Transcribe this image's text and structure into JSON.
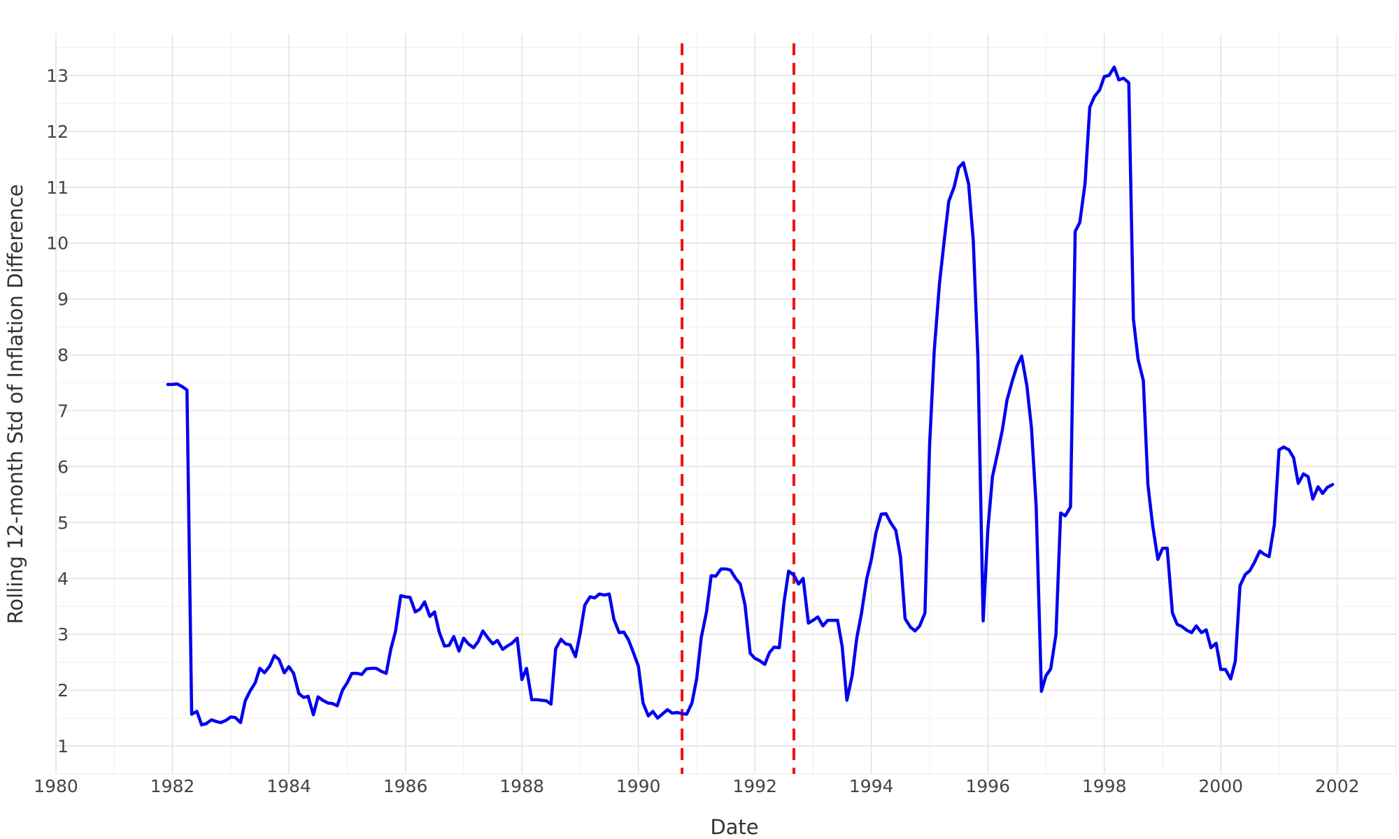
{
  "chart_data": {
    "type": "line",
    "xlabel": "Date",
    "ylabel": "Rolling 12-month Std of Inflation Difference",
    "xlim": [
      1980,
      2003
    ],
    "ylim": [
      0.5,
      13.75
    ],
    "x_ticks": [
      "1980",
      "1982",
      "1984",
      "1986",
      "1988",
      "1990",
      "1992",
      "1994",
      "1996",
      "1998",
      "2000",
      "2002"
    ],
    "y_ticks": [
      "1",
      "2",
      "3",
      "4",
      "5",
      "6",
      "7",
      "8",
      "9",
      "10",
      "11",
      "12",
      "13"
    ],
    "grid": true,
    "line_color": "#0000ee",
    "vline_color": "#ee1111",
    "vlines": [
      1990.75,
      1992.67
    ],
    "series": [
      {
        "x": [
          1981.92,
          1982.0,
          1982.08,
          1982.17,
          1982.25,
          1982.33,
          1982.42,
          1982.5,
          1982.58,
          1982.67,
          1982.75,
          1982.83,
          1982.92,
          1983.0,
          1983.08,
          1983.17,
          1983.25,
          1983.33,
          1983.42,
          1983.5,
          1983.58,
          1983.67,
          1983.75,
          1983.83,
          1983.92,
          1984.0,
          1984.08,
          1984.17,
          1984.25,
          1984.33,
          1984.42,
          1984.5,
          1984.58,
          1984.67,
          1984.75,
          1984.83,
          1984.92,
          1985.0,
          1985.08,
          1985.17,
          1985.25,
          1985.33,
          1985.42,
          1985.5,
          1985.58,
          1985.67,
          1985.75,
          1985.83,
          1985.92,
          1986.0,
          1986.08,
          1986.17,
          1986.25,
          1986.33,
          1986.42,
          1986.5,
          1986.58,
          1986.67,
          1986.75,
          1986.83,
          1986.92,
          1987.0,
          1987.08,
          1987.17,
          1987.25,
          1987.33,
          1987.42,
          1987.5,
          1987.58,
          1987.67,
          1987.75,
          1987.83,
          1987.92,
          1988.0,
          1988.08,
          1988.17,
          1988.25,
          1988.33,
          1988.42,
          1988.5,
          1988.58,
          1988.67,
          1988.75,
          1988.83,
          1988.92,
          1989.0,
          1989.08,
          1989.17,
          1989.25,
          1989.33,
          1989.42,
          1989.5,
          1989.58,
          1989.67,
          1989.75,
          1989.83,
          1989.92,
          1990.0,
          1990.08,
          1990.17,
          1990.25,
          1990.33,
          1990.42,
          1990.5,
          1990.58,
          1990.67,
          1990.75,
          1990.83,
          1990.92,
          1991.0,
          1991.08,
          1991.17,
          1991.25,
          1991.33,
          1991.42,
          1991.5,
          1991.58,
          1991.67,
          1991.75,
          1991.83,
          1991.92,
          1992.0,
          1992.08,
          1992.17,
          1992.25,
          1992.33,
          1992.42,
          1992.5,
          1992.58,
          1992.67,
          1992.75,
          1992.83,
          1992.92,
          1993.0,
          1993.08,
          1993.17,
          1993.25,
          1993.33,
          1993.42,
          1993.5,
          1993.58,
          1993.67,
          1993.75,
          1993.83,
          1993.92,
          1994.0,
          1994.08,
          1994.17,
          1994.25,
          1994.33,
          1994.42,
          1994.5,
          1994.58,
          1994.67,
          1994.75,
          1994.83,
          1994.92,
          1995.0,
          1995.08,
          1995.17,
          1995.25,
          1995.33,
          1995.42,
          1995.5,
          1995.58,
          1995.67,
          1995.75,
          1995.83,
          1995.92,
          1996.0,
          1996.08,
          1996.17,
          1996.25,
          1996.33,
          1996.42,
          1996.5,
          1996.58,
          1996.67,
          1996.75,
          1996.83,
          1996.92,
          1997.0,
          1997.08,
          1997.17,
          1997.25,
          1997.33,
          1997.42,
          1997.5,
          1997.58,
          1997.67,
          1997.75,
          1997.83,
          1997.92,
          1998.0,
          1998.08,
          1998.17,
          1998.25,
          1998.33,
          1998.42,
          1998.5,
          1998.58,
          1998.67,
          1998.75,
          1998.83,
          1998.92,
          1999.0,
          1999.08,
          1999.17,
          1999.25,
          1999.33,
          1999.42,
          1999.5,
          1999.58,
          1999.67,
          1999.75,
          1999.83,
          1999.92,
          2000.0,
          2000.08,
          2000.17,
          2000.25,
          2000.33,
          2000.42,
          2000.5,
          2000.58,
          2000.67,
          2000.75,
          2000.83,
          2000.92,
          2001.0,
          2001.08,
          2001.17,
          2001.25,
          2001.33,
          2001.42,
          2001.5,
          2001.58,
          2001.67,
          2001.75,
          2001.83,
          2001.92
        ],
        "y": [
          7.47,
          7.47,
          7.48,
          7.43,
          7.37,
          1.57,
          1.62,
          1.38,
          1.4,
          1.47,
          1.44,
          1.42,
          1.46,
          1.52,
          1.51,
          1.42,
          1.81,
          1.98,
          2.13,
          2.39,
          2.31,
          2.43,
          2.62,
          2.55,
          2.31,
          2.42,
          2.3,
          1.94,
          1.87,
          1.89,
          1.56,
          1.88,
          1.82,
          1.77,
          1.76,
          1.72,
          2.0,
          2.13,
          2.3,
          2.3,
          2.28,
          2.38,
          2.39,
          2.39,
          2.34,
          2.3,
          2.74,
          3.05,
          3.69,
          3.67,
          3.66,
          3.4,
          3.45,
          3.58,
          3.32,
          3.4,
          3.04,
          2.79,
          2.8,
          2.96,
          2.7,
          2.93,
          2.83,
          2.76,
          2.87,
          3.06,
          2.93,
          2.83,
          2.89,
          2.73,
          2.79,
          2.84,
          2.93,
          2.19,
          2.39,
          1.83,
          1.83,
          1.82,
          1.81,
          1.75,
          2.74,
          2.91,
          2.83,
          2.81,
          2.6,
          3.01,
          3.52,
          3.67,
          3.65,
          3.72,
          3.7,
          3.72,
          3.27,
          3.03,
          3.04,
          2.9,
          2.66,
          2.43,
          1.77,
          1.54,
          1.62,
          1.5,
          1.58,
          1.65,
          1.59,
          1.6,
          1.58,
          1.57,
          1.77,
          2.2,
          2.94,
          3.4,
          4.05,
          4.04,
          4.17,
          4.17,
          4.15,
          4.0,
          3.9,
          3.53,
          2.66,
          2.57,
          2.53,
          2.46,
          2.67,
          2.77,
          2.76,
          3.57,
          4.13,
          4.06,
          3.9,
          4.0,
          3.2,
          3.25,
          3.31,
          3.15,
          3.25,
          3.25,
          3.25,
          2.78,
          1.82,
          2.26,
          2.93,
          3.37,
          3.99,
          4.34,
          4.82,
          5.15,
          5.16,
          5.0,
          4.86,
          4.39,
          3.28,
          3.13,
          3.06,
          3.15,
          3.38,
          6.37,
          8.08,
          9.28,
          10.03,
          10.75,
          11.0,
          11.35,
          11.44,
          11.06,
          10.04,
          7.95,
          3.24,
          4.87,
          5.82,
          6.25,
          6.66,
          7.19,
          7.53,
          7.8,
          7.98,
          7.45,
          6.69,
          5.29,
          1.98,
          2.26,
          2.38,
          3.0,
          5.17,
          5.12,
          5.28,
          10.21,
          10.37,
          11.07,
          12.43,
          12.62,
          12.74,
          12.98,
          13.0,
          13.15,
          12.92,
          12.95,
          12.87,
          8.64,
          7.92,
          7.54,
          5.67,
          4.95,
          4.34,
          4.54,
          4.54,
          3.38,
          3.18,
          3.14,
          3.07,
          3.03,
          3.15,
          3.03,
          3.08,
          2.76,
          2.84,
          2.37,
          2.37,
          2.2,
          2.52,
          3.87,
          4.07,
          4.14,
          4.29,
          4.49,
          4.43,
          4.39,
          4.96,
          6.3,
          6.35,
          6.3,
          6.16,
          5.7,
          5.87,
          5.82,
          5.42,
          5.64,
          5.52,
          5.63,
          5.68
        ]
      }
    ]
  }
}
